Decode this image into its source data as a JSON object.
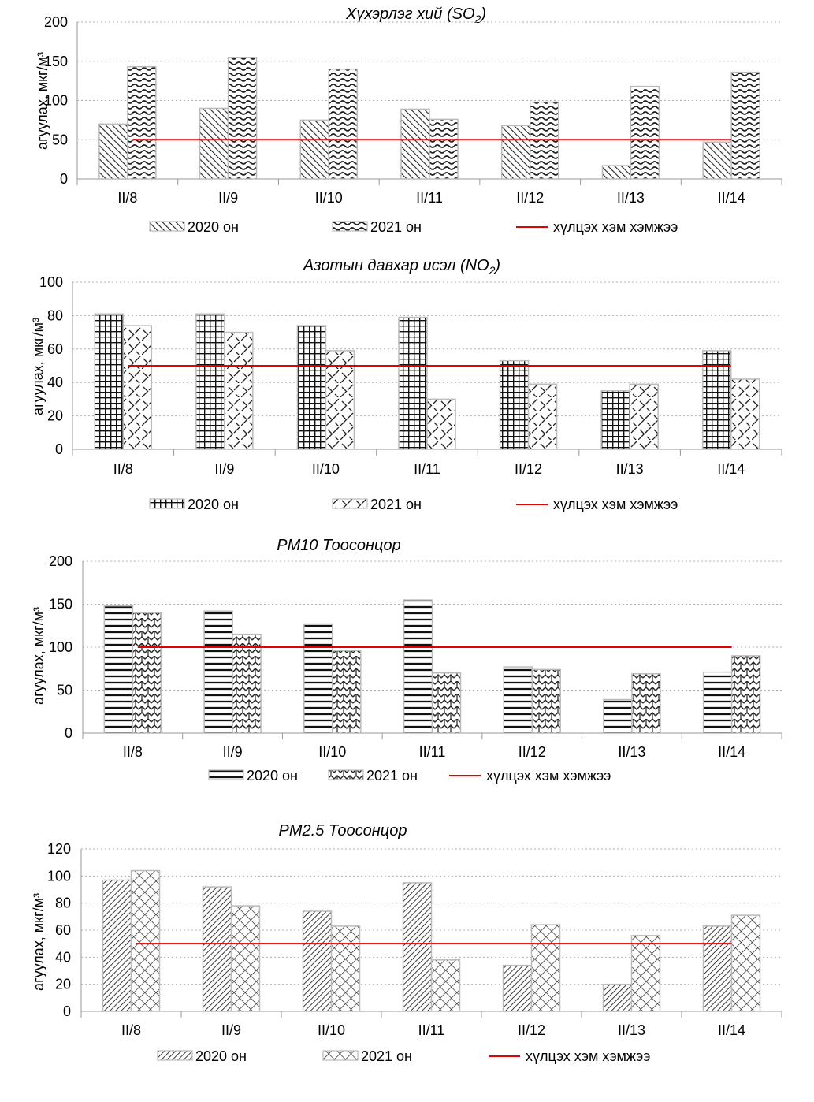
{
  "chart_data": [
    {
      "type": "bar",
      "title": "Хүхэрлэг хий (SO₂)",
      "title_parts": {
        "main": "Хүхэрлэг хий (SO",
        "sub": "2",
        "tail": ")"
      },
      "ylabel": "агуулах, мкг/м³",
      "ylim": [
        0,
        200
      ],
      "yticks": [
        0,
        50,
        100,
        150,
        200
      ],
      "categories": [
        "II/8",
        "II/9",
        "II/10",
        "II/11",
        "II/12",
        "II/13",
        "II/14"
      ],
      "series": [
        {
          "name": "2020 он",
          "values": [
            70,
            90,
            75,
            89,
            68,
            17,
            47
          ]
        },
        {
          "name": "2021 он",
          "values": [
            143,
            155,
            140,
            76,
            98,
            118,
            136
          ]
        }
      ],
      "limit": {
        "name": "хүлцэх хэм хэмжээ",
        "value": 50
      },
      "grid": true,
      "legend": "bottom"
    },
    {
      "type": "bar",
      "title": "Азотын давхар исэл (NO₂)",
      "title_parts": {
        "main": "Азотын давхар исэл (NO",
        "sub": "2",
        "tail": ")"
      },
      "ylabel": "агуулах, мкг/м³",
      "ylim": [
        0,
        100
      ],
      "yticks": [
        0,
        20,
        40,
        60,
        80,
        100
      ],
      "categories": [
        "II/8",
        "II/9",
        "II/10",
        "II/11",
        "II/12",
        "II/13",
        "II/14"
      ],
      "series": [
        {
          "name": "2020 он",
          "values": [
            81,
            81,
            74,
            79,
            53,
            35,
            59
          ]
        },
        {
          "name": "2021 он",
          "values": [
            74,
            70,
            59,
            30,
            39,
            39,
            42
          ]
        }
      ],
      "limit": {
        "name": "хүлцэх хэм хэмжээ",
        "value": 50
      },
      "grid": true,
      "legend": "bottom"
    },
    {
      "type": "bar",
      "title": "PM10 Тоосонцор",
      "title_parts": {
        "main": "PM10 Тоосонцор",
        "sub": "",
        "tail": ""
      },
      "ylabel": "агуулах, мкг/м³",
      "ylim": [
        0,
        200
      ],
      "yticks": [
        0,
        50,
        100,
        150,
        200
      ],
      "categories": [
        "II/8",
        "II/9",
        "II/10",
        "II/11",
        "II/12",
        "II/13",
        "II/14"
      ],
      "series": [
        {
          "name": "2020 он",
          "values": [
            148,
            142,
            127,
            155,
            77,
            39,
            71
          ]
        },
        {
          "name": "2021 он",
          "values": [
            140,
            115,
            96,
            70,
            74,
            69,
            90
          ]
        }
      ],
      "limit": {
        "name": "хүлцэх хэм хэмжээ",
        "value": 100
      },
      "grid": true,
      "legend": "bottom"
    },
    {
      "type": "bar",
      "title": "PM2.5 Тоосонцор",
      "title_parts": {
        "main": "PM2.5 Тоосонцор",
        "sub": "",
        "tail": ""
      },
      "ylabel": "агуулах, мкг/м³",
      "ylim": [
        0,
        120
      ],
      "yticks": [
        0,
        20,
        40,
        60,
        80,
        100,
        120
      ],
      "categories": [
        "II/8",
        "II/9",
        "II/10",
        "II/11",
        "II/12",
        "II/13",
        "II/14"
      ],
      "series": [
        {
          "name": "2020 он",
          "values": [
            97,
            92,
            74,
            95,
            34,
            20,
            63
          ]
        },
        {
          "name": "2021 он",
          "values": [
            104,
            78,
            63,
            38,
            64,
            56,
            71
          ]
        }
      ],
      "limit": {
        "name": "хүлцэх хэм хэмжээ",
        "value": 50
      },
      "grid": true,
      "legend": "bottom"
    }
  ],
  "colors": {
    "limit_line": "#e00000",
    "bar_stroke": "#bbbbbb",
    "grid": "#b0b0b0",
    "axis": "#999999"
  },
  "patterns": {
    "so2_2020": "diagonal-hatch",
    "so2_2021": "wave",
    "no2_2020": "grid",
    "no2_2021": "diagonal-dash",
    "pm10_2020": "horizontal-lines",
    "pm10_2021": "zigzag",
    "pm25_2020": "dense-diagonal",
    "pm25_2021": "crosshatch"
  }
}
